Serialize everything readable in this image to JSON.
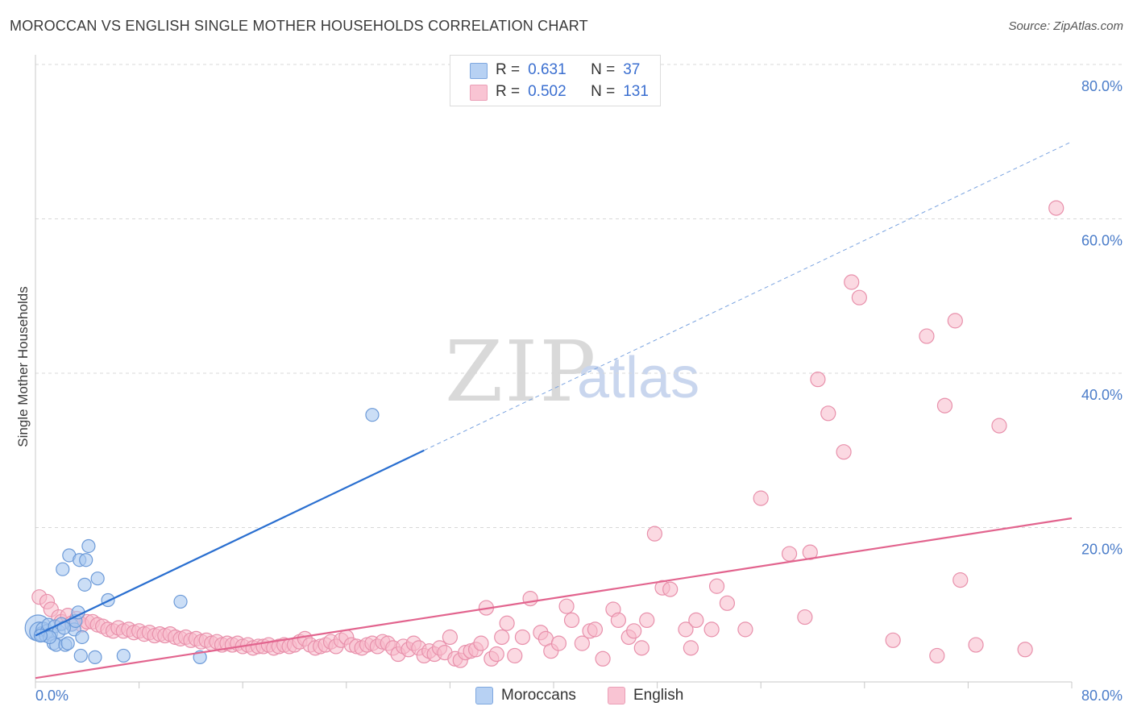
{
  "title": "MOROCCAN VS ENGLISH SINGLE MOTHER HOUSEHOLDS CORRELATION CHART",
  "source": "Source: ZipAtlas.com",
  "watermark": {
    "zip": "ZIP",
    "atlas": "atlas"
  },
  "legend": {
    "moroccans": {
      "r_label": "R =",
      "r_value": "0.631",
      "n_label": "N =",
      "n_value": "37"
    },
    "english": {
      "r_label": "R =",
      "r_value": "0.502",
      "n_label": "N =",
      "n_value": "131"
    }
  },
  "bottom_legend": {
    "moroccans": "Moroccans",
    "english": "English"
  },
  "colors": {
    "moroccans_fill": "#a9c8f0",
    "moroccans_stroke": "#6c9ad8",
    "moroccans_line": "#2a6fd0",
    "english_fill": "#f7b9cb",
    "english_stroke": "#e890ab",
    "english_line": "#e2648e",
    "tick_text": "#4a7cc9",
    "grid": "#d8d8d8"
  },
  "chart_data": {
    "type": "scatter",
    "title": "MOROCCAN VS ENGLISH SINGLE MOTHER HOUSEHOLDS CORRELATION CHART",
    "xlabel": "",
    "ylabel": "Single Mother Households",
    "xlim": [
      0,
      80
    ],
    "ylim": [
      0,
      80
    ],
    "x_tick_labels": [
      "0.0%",
      "80.0%"
    ],
    "y_ticks": [
      20,
      40,
      60,
      80
    ],
    "y_tick_labels": [
      "20.0%",
      "40.0%",
      "60.0%",
      "80.0%"
    ],
    "series": [
      {
        "name": "Moroccans",
        "R": 0.631,
        "N": 37,
        "trend": {
          "x0": 0,
          "y0": 6.0,
          "x1": 30,
          "y1": 30.0,
          "dashed_to_x": 80,
          "dashed_to_y": 70.0
        },
        "points": [
          [
            0.2,
            7.0,
            16
          ],
          [
            0.3,
            6.5,
            12
          ],
          [
            0.5,
            6.2,
            9
          ],
          [
            0.6,
            6.8,
            9
          ],
          [
            0.8,
            6.0,
            8
          ],
          [
            0.9,
            6.6,
            8
          ],
          [
            1.0,
            7.4,
            8
          ],
          [
            1.2,
            6.2,
            8
          ],
          [
            1.4,
            5.0,
            8
          ],
          [
            1.5,
            7.2,
            8
          ],
          [
            1.6,
            4.8,
            8
          ],
          [
            1.8,
            6.5,
            8
          ],
          [
            2.0,
            7.5,
            8
          ],
          [
            2.1,
            14.6,
            8
          ],
          [
            2.3,
            4.8,
            8
          ],
          [
            2.5,
            5.0,
            8
          ],
          [
            2.6,
            16.4,
            8
          ],
          [
            2.8,
            7.4,
            8
          ],
          [
            3.0,
            6.8,
            8
          ],
          [
            3.1,
            7.9,
            8
          ],
          [
            3.3,
            9.0,
            8
          ],
          [
            3.4,
            15.8,
            8
          ],
          [
            3.5,
            3.4,
            8
          ],
          [
            3.6,
            5.8,
            8
          ],
          [
            3.8,
            12.6,
            8
          ],
          [
            3.9,
            15.8,
            8
          ],
          [
            4.1,
            17.6,
            8
          ],
          [
            4.6,
            3.2,
            8
          ],
          [
            4.8,
            13.4,
            8
          ],
          [
            5.6,
            10.6,
            8
          ],
          [
            6.8,
            3.4,
            8
          ],
          [
            11.2,
            10.4,
            8
          ],
          [
            12.7,
            3.2,
            8
          ],
          [
            26.0,
            34.6,
            8
          ],
          [
            1.1,
            5.8,
            8
          ],
          [
            2.2,
            7.0,
            8
          ],
          [
            0.4,
            6.0,
            8
          ]
        ]
      },
      {
        "name": "English",
        "R": 0.502,
        "N": 131,
        "trend": {
          "x0": 0,
          "y0": 0.5,
          "x1": 80,
          "y1": 21.2
        },
        "points": [
          [
            0.3,
            11.0
          ],
          [
            0.9,
            10.4
          ],
          [
            1.2,
            9.4
          ],
          [
            1.8,
            8.4
          ],
          [
            2.0,
            7.8
          ],
          [
            2.5,
            8.6
          ],
          [
            2.8,
            7.6
          ],
          [
            3.2,
            8.2
          ],
          [
            3.6,
            7.4
          ],
          [
            4.0,
            7.8
          ],
          [
            4.4,
            7.8
          ],
          [
            4.8,
            7.4
          ],
          [
            5.2,
            7.2
          ],
          [
            5.6,
            6.8
          ],
          [
            6.0,
            6.6
          ],
          [
            6.4,
            7.0
          ],
          [
            6.8,
            6.6
          ],
          [
            7.2,
            6.8
          ],
          [
            7.6,
            6.4
          ],
          [
            8.0,
            6.6
          ],
          [
            8.4,
            6.2
          ],
          [
            8.8,
            6.4
          ],
          [
            9.2,
            6.0
          ],
          [
            9.6,
            6.2
          ],
          [
            10.0,
            6.0
          ],
          [
            10.4,
            6.2
          ],
          [
            10.8,
            5.8
          ],
          [
            11.2,
            5.6
          ],
          [
            11.6,
            5.8
          ],
          [
            12.0,
            5.4
          ],
          [
            12.4,
            5.6
          ],
          [
            12.8,
            5.2
          ],
          [
            13.2,
            5.4
          ],
          [
            13.6,
            5.0
          ],
          [
            14.0,
            5.2
          ],
          [
            14.4,
            4.8
          ],
          [
            14.8,
            5.0
          ],
          [
            15.2,
            4.8
          ],
          [
            15.6,
            5.0
          ],
          [
            16.0,
            4.6
          ],
          [
            16.4,
            4.8
          ],
          [
            16.8,
            4.4
          ],
          [
            17.2,
            4.6
          ],
          [
            17.6,
            4.6
          ],
          [
            18.0,
            4.8
          ],
          [
            18.4,
            4.4
          ],
          [
            18.8,
            4.6
          ],
          [
            19.2,
            4.8
          ],
          [
            19.6,
            4.6
          ],
          [
            20.0,
            4.8
          ],
          [
            20.4,
            5.2
          ],
          [
            20.8,
            5.6
          ],
          [
            21.2,
            4.8
          ],
          [
            21.6,
            4.4
          ],
          [
            22.0,
            4.6
          ],
          [
            22.4,
            4.8
          ],
          [
            22.8,
            5.2
          ],
          [
            23.2,
            4.6
          ],
          [
            23.6,
            5.4
          ],
          [
            24.0,
            5.8
          ],
          [
            24.4,
            4.8
          ],
          [
            24.8,
            4.6
          ],
          [
            25.2,
            4.4
          ],
          [
            25.6,
            4.8
          ],
          [
            26.0,
            5.0
          ],
          [
            26.4,
            4.6
          ],
          [
            26.8,
            5.2
          ],
          [
            27.2,
            5.0
          ],
          [
            27.6,
            4.4
          ],
          [
            28.0,
            3.6
          ],
          [
            28.4,
            4.6
          ],
          [
            28.8,
            4.2
          ],
          [
            29.2,
            5.0
          ],
          [
            29.6,
            4.4
          ],
          [
            30.0,
            3.4
          ],
          [
            30.4,
            4.0
          ],
          [
            30.8,
            3.6
          ],
          [
            31.2,
            4.4
          ],
          [
            31.6,
            3.8
          ],
          [
            32.0,
            5.8
          ],
          [
            32.4,
            3.0
          ],
          [
            32.8,
            2.8
          ],
          [
            33.2,
            3.8
          ],
          [
            33.6,
            4.0
          ],
          [
            34.0,
            4.2
          ],
          [
            34.4,
            5.0
          ],
          [
            34.8,
            9.6
          ],
          [
            35.2,
            3.0
          ],
          [
            35.6,
            3.6
          ],
          [
            36.0,
            5.8
          ],
          [
            36.4,
            7.6
          ],
          [
            37.0,
            3.4
          ],
          [
            37.6,
            5.8
          ],
          [
            38.2,
            10.8
          ],
          [
            39.0,
            6.4
          ],
          [
            39.4,
            5.6
          ],
          [
            39.8,
            4.0
          ],
          [
            40.4,
            5.0
          ],
          [
            41.0,
            9.8
          ],
          [
            41.4,
            8.0
          ],
          [
            42.2,
            5.0
          ],
          [
            42.8,
            6.6
          ],
          [
            43.2,
            6.8
          ],
          [
            43.8,
            3.0
          ],
          [
            44.6,
            9.4
          ],
          [
            45.0,
            8.0
          ],
          [
            45.8,
            5.8
          ],
          [
            46.2,
            6.6
          ],
          [
            46.8,
            4.4
          ],
          [
            47.2,
            8.0
          ],
          [
            47.8,
            19.2
          ],
          [
            48.4,
            12.2
          ],
          [
            49.0,
            12.0
          ],
          [
            50.2,
            6.8
          ],
          [
            50.6,
            4.4
          ],
          [
            51.0,
            8.0
          ],
          [
            52.2,
            6.8
          ],
          [
            52.6,
            12.4
          ],
          [
            53.4,
            10.2
          ],
          [
            54.8,
            6.8
          ],
          [
            56.0,
            23.8
          ],
          [
            58.2,
            16.6
          ],
          [
            59.4,
            8.4
          ],
          [
            59.8,
            16.8
          ],
          [
            60.4,
            39.2
          ],
          [
            61.2,
            34.8
          ],
          [
            62.4,
            29.8
          ],
          [
            63.0,
            51.8
          ],
          [
            63.6,
            49.8
          ],
          [
            66.2,
            5.4
          ],
          [
            68.8,
            44.8
          ],
          [
            69.6,
            3.4
          ],
          [
            70.2,
            35.8
          ],
          [
            71.0,
            46.8
          ],
          [
            71.4,
            13.2
          ],
          [
            72.6,
            4.8
          ],
          [
            74.4,
            33.2
          ],
          [
            76.4,
            4.2
          ],
          [
            78.8,
            61.4
          ]
        ]
      }
    ]
  }
}
